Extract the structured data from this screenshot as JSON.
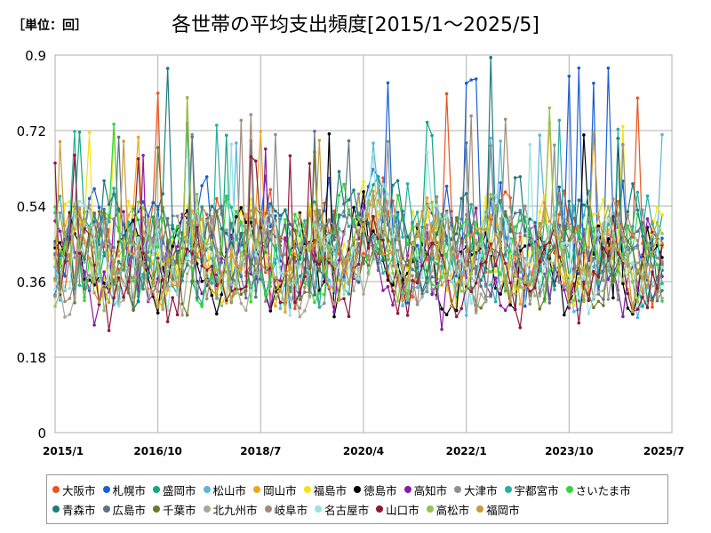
{
  "unit_label": "［単位：回］",
  "chart_data": {
    "type": "line",
    "title": "各世帯の平均支出頻度[2015/1～2025/5]",
    "xlabel": "",
    "ylabel": "",
    "ylim": [
      0,
      0.9
    ],
    "yticks": [
      0,
      0.18,
      0.36,
      0.54,
      0.72,
      0.9
    ],
    "ytick_labels": [
      "0",
      "0.18",
      "0.36",
      "0.54",
      "0.72",
      "0.9"
    ],
    "xticks": [
      "2015/1",
      "2016/10",
      "2018/7",
      "2020/4",
      "2022/1",
      "2023/10",
      "2025/7"
    ],
    "x_start": "2015/1",
    "x_end": "2025/5",
    "grid": true,
    "legend_position": "bottom",
    "series": [
      {
        "name": "大阪市",
        "color": "#e8551f",
        "base": 0.44,
        "amp": 0.08,
        "noise": 0.07,
        "peak": 0.82
      },
      {
        "name": "札幌市",
        "color": "#1a5fd6",
        "base": 0.45,
        "amp": 0.09,
        "noise": 0.08,
        "peak": 0.87
      },
      {
        "name": "盛岡市",
        "color": "#14a880",
        "base": 0.43,
        "amp": 0.07,
        "noise": 0.07,
        "peak": 0.74
      },
      {
        "name": "松山市",
        "color": "#5ab4e0",
        "base": 0.41,
        "amp": 0.07,
        "noise": 0.07,
        "peak": 0.72
      },
      {
        "name": "岡山市",
        "color": "#f0a41e",
        "base": 0.42,
        "amp": 0.07,
        "noise": 0.07,
        "peak": 0.74
      },
      {
        "name": "福島市",
        "color": "#f5e21c",
        "base": 0.43,
        "amp": 0.07,
        "noise": 0.07,
        "peak": 0.73
      },
      {
        "name": "徳島市",
        "color": "#000000",
        "base": 0.4,
        "amp": 0.08,
        "noise": 0.06,
        "peak": 0.73
      },
      {
        "name": "高知市",
        "color": "#8b1aa6",
        "base": 0.39,
        "amp": 0.08,
        "noise": 0.07,
        "peak": 0.7
      },
      {
        "name": "大津市",
        "color": "#8f8f8f",
        "base": 0.42,
        "amp": 0.07,
        "noise": 0.07,
        "peak": 0.72
      },
      {
        "name": "宇都宮市",
        "color": "#25b0a0",
        "base": 0.44,
        "amp": 0.08,
        "noise": 0.07,
        "peak": 0.75
      },
      {
        "name": "さいたま市",
        "color": "#33d63a",
        "base": 0.43,
        "amp": 0.07,
        "noise": 0.07,
        "peak": 0.75
      },
      {
        "name": "青森市",
        "color": "#1e7b7b",
        "base": 0.46,
        "amp": 0.09,
        "noise": 0.08,
        "peak": 0.9
      },
      {
        "name": "広島市",
        "color": "#5e7389",
        "base": 0.42,
        "amp": 0.07,
        "noise": 0.06,
        "peak": 0.72
      },
      {
        "name": "千葉市",
        "color": "#6d7a2a",
        "base": 0.41,
        "amp": 0.07,
        "noise": 0.07,
        "peak": 0.7
      },
      {
        "name": "北九州市",
        "color": "#a8a896",
        "base": 0.4,
        "amp": 0.07,
        "noise": 0.06,
        "peak": 0.7
      },
      {
        "name": "岐阜市",
        "color": "#a38b7a",
        "base": 0.43,
        "amp": 0.08,
        "noise": 0.07,
        "peak": 0.78
      },
      {
        "name": "名古屋市",
        "color": "#98e3e0",
        "base": 0.42,
        "amp": 0.08,
        "noise": 0.07,
        "peak": 0.7
      },
      {
        "name": "山口市",
        "color": "#8b1a3a",
        "base": 0.38,
        "amp": 0.08,
        "noise": 0.06,
        "peak": 0.68
      },
      {
        "name": "高松市",
        "color": "#96c24f",
        "base": 0.42,
        "amp": 0.08,
        "noise": 0.07,
        "peak": 0.8
      },
      {
        "name": "福岡市",
        "color": "#c89a3c",
        "base": 0.41,
        "amp": 0.07,
        "noise": 0.07,
        "peak": 0.72
      }
    ]
  }
}
